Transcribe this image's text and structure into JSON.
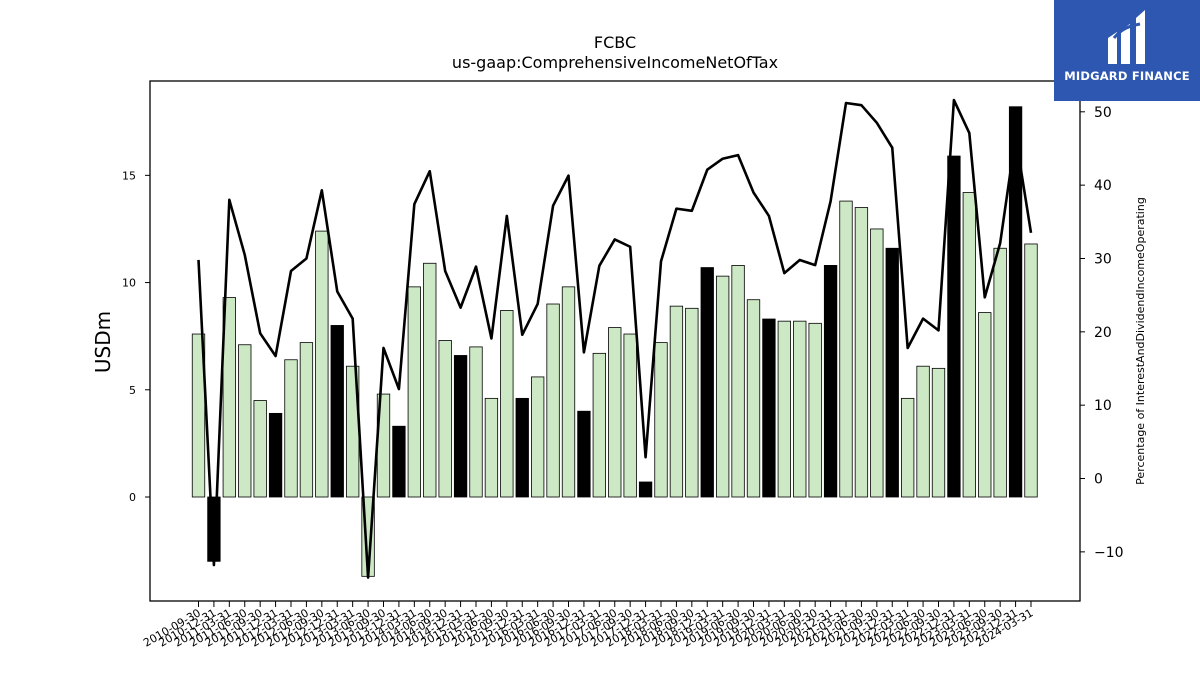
{
  "brand": {
    "name": "MIDGARD FINANCE",
    "icon": "midgard-logo-icon",
    "background": "#2d57b0"
  },
  "chart_data": {
    "type": "bar",
    "title": "FCBC",
    "subtitle": "us-gaap:ComprehensiveIncomeNetOfTax",
    "ylabel": "USDm",
    "y2label": "Percentage of InterestAndDividendIncomeOperating",
    "ylim": [
      -4.85,
      19.4
    ],
    "y2lim": [
      -16.7,
      54.2
    ],
    "yticks": [
      0,
      5,
      10,
      15
    ],
    "y2ticks": [
      -10,
      0,
      10,
      20,
      30,
      40,
      50
    ],
    "categories": [
      "2010-09-30",
      "2010-12-31",
      "2011-03-31",
      "2011-06-30",
      "2011-09-30",
      "2011-12-31",
      "2012-03-31",
      "2012-06-30",
      "2012-09-30",
      "2012-12-31",
      "2013-03-31",
      "2013-06-30",
      "2013-09-30",
      "2013-12-31",
      "2014-03-31",
      "2014-06-30",
      "2014-09-30",
      "2014-12-31",
      "2015-03-31",
      "2015-06-30",
      "2015-09-30",
      "2015-12-31",
      "2016-03-31",
      "2016-06-30",
      "2016-09-30",
      "2016-12-31",
      "2017-03-31",
      "2017-06-30",
      "2017-09-30",
      "2017-12-31",
      "2018-03-31",
      "2018-06-30",
      "2018-09-30",
      "2018-12-31",
      "2019-03-31",
      "2019-06-30",
      "2019-09-30",
      "2019-12-31",
      "2020-03-31",
      "2020-06-30",
      "2020-09-30",
      "2020-12-31",
      "2021-03-31",
      "2021-06-30",
      "2021-09-30",
      "2021-12-31",
      "2022-03-31",
      "2022-06-30",
      "2022-09-30",
      "2022-12-31",
      "2023-03-31",
      "2023-06-30",
      "2023-09-30",
      "2023-12-31",
      "2024-03-31"
    ],
    "series": [
      {
        "kind": "bar",
        "values": [
          7.6,
          -3.0,
          9.3,
          7.1,
          4.5,
          3.9,
          6.4,
          7.2,
          12.4,
          8.0,
          6.1,
          -3.7,
          4.8,
          3.3,
          9.8,
          10.9,
          7.3,
          6.6,
          7.0,
          4.6,
          8.7,
          4.6,
          5.6,
          9.0,
          9.8,
          4.0,
          6.7,
          7.9,
          7.6,
          0.7,
          7.2,
          8.9,
          8.8,
          10.7,
          10.3,
          10.8,
          9.2,
          8.3,
          8.2,
          8.2,
          8.1,
          10.8,
          13.8,
          13.5,
          12.5,
          11.6,
          4.6,
          6.1,
          6.0,
          15.9,
          14.2,
          8.6,
          11.6,
          18.2,
          11.8
        ],
        "highlight": [
          false,
          true,
          false,
          false,
          false,
          true,
          false,
          false,
          false,
          true,
          false,
          false,
          false,
          true,
          false,
          false,
          false,
          true,
          false,
          false,
          false,
          true,
          false,
          false,
          false,
          true,
          false,
          false,
          false,
          true,
          false,
          false,
          false,
          true,
          false,
          false,
          false,
          true,
          false,
          false,
          false,
          true,
          false,
          false,
          false,
          true,
          false,
          false,
          false,
          true,
          false,
          false,
          false,
          true,
          false
        ],
        "color": "#cce8c4",
        "highlight_color": "#000000"
      },
      {
        "kind": "line",
        "axis": "right",
        "color": "#000000",
        "values": [
          29.8,
          -11.8,
          38.0,
          30.5,
          19.8,
          16.7,
          28.3,
          30.0,
          39.3,
          25.5,
          21.8,
          -13.5,
          17.8,
          12.2,
          37.4,
          41.9,
          28.3,
          23.3,
          28.9,
          19.1,
          35.8,
          19.6,
          23.8,
          37.2,
          41.3,
          17.2,
          29.0,
          32.6,
          31.6,
          2.9,
          29.6,
          36.8,
          36.5,
          42.1,
          43.6,
          44.1,
          39.0,
          35.8,
          28.0,
          29.8,
          29.1,
          37.8,
          51.2,
          50.9,
          48.5,
          45.1,
          17.8,
          21.8,
          20.2,
          51.6,
          47.1,
          24.7,
          32.1,
          46.7,
          33.5
        ]
      }
    ]
  }
}
